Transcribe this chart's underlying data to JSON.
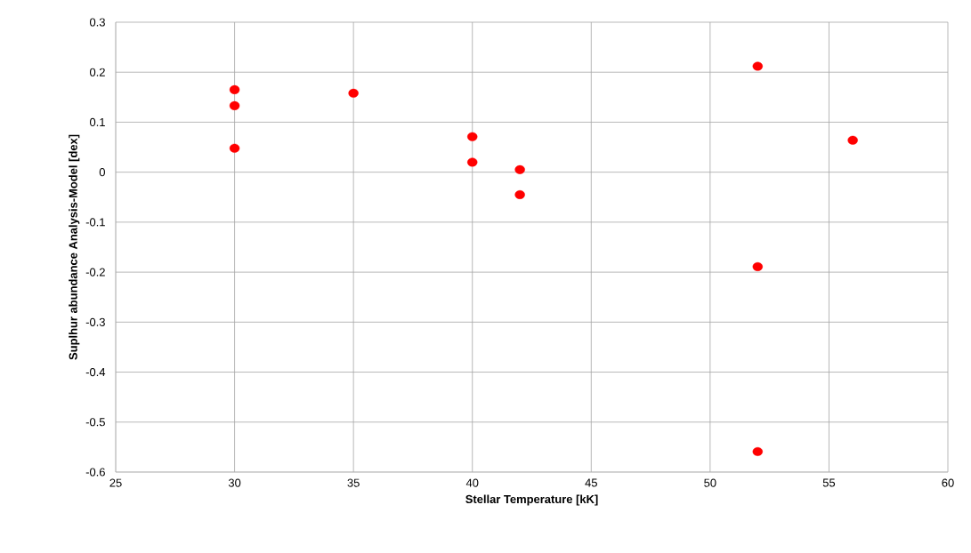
{
  "chart_data": {
    "type": "scatter",
    "xlabel": "Stellar Temperature [kK]",
    "ylabel": "Suplhur abundance Analysis-Model [dex]",
    "series": [
      {
        "color": "#ff0000",
        "x": [
          30,
          30,
          30,
          35,
          40,
          40,
          42,
          42,
          52,
          52,
          52,
          56
        ],
        "values": [
          0.165,
          0.133,
          0.048,
          0.158,
          0.071,
          0.02,
          0.005,
          -0.045,
          0.212,
          -0.189,
          -0.559,
          0.064
        ]
      }
    ],
    "xlim": [
      25,
      60
    ],
    "xticks": [
      25,
      30,
      35,
      40,
      45,
      50,
      55,
      60
    ],
    "ylim": [
      -0.6,
      0.3
    ],
    "yticks": [
      -0.6,
      -0.5,
      -0.4,
      -0.3,
      -0.2,
      -0.1,
      0,
      0.1,
      0.2,
      0.3
    ],
    "grid": true,
    "marker": "circle"
  }
}
